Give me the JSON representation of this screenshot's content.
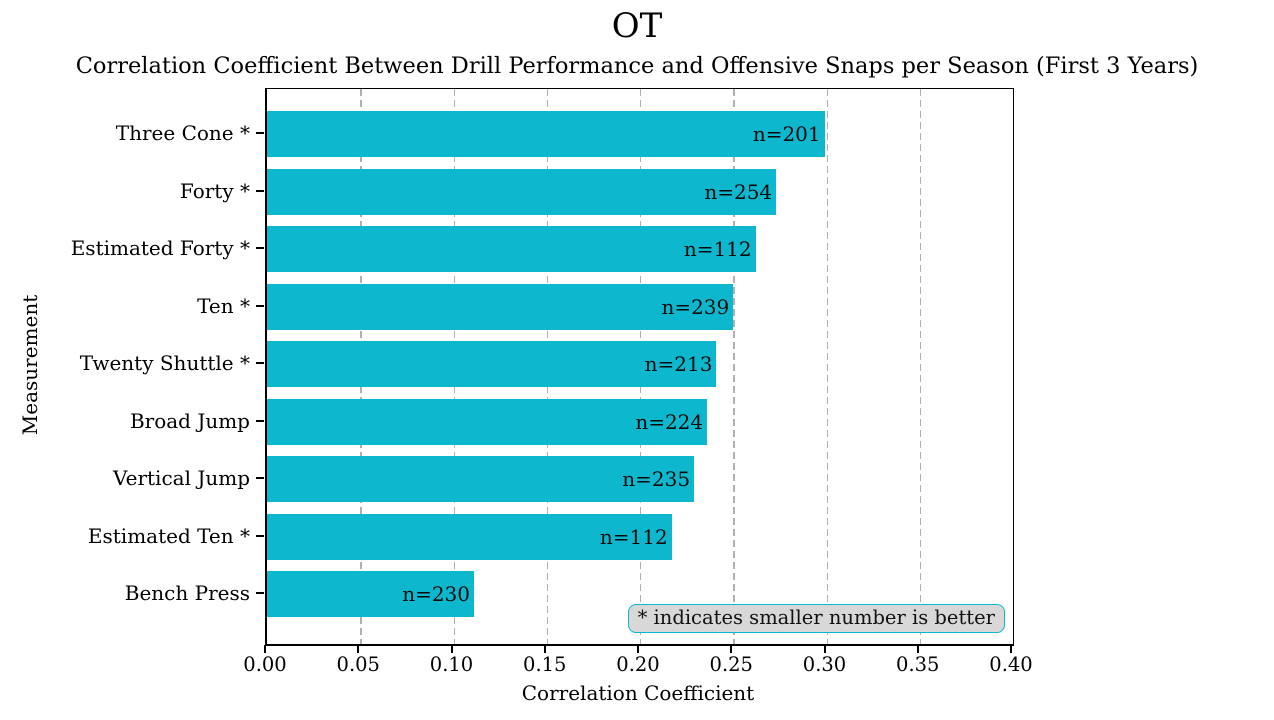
{
  "figure": {
    "title": "OT",
    "subtitle": "Correlation Coefficient Between Drill Performance and Offensive Snaps per Season (First 3 Years)"
  },
  "colors": {
    "bar": "#0db8cf",
    "grid": "#b0b0b0",
    "legend_bg": "#d8d8d8",
    "accent": "#0db8cf",
    "text": "#000000"
  },
  "legend": {
    "note": "* indicates smaller number is better"
  },
  "chart_data": {
    "type": "bar",
    "orientation": "horizontal",
    "title": "OT",
    "subtitle": "Correlation Coefficient Between Drill Performance and Offensive Snaps per Season (First 3 Years)",
    "xlabel": "Correlation Coefficient",
    "ylabel": "Measurement",
    "xlim": [
      0.0,
      0.4
    ],
    "xticks": [
      "0.00",
      "0.05",
      "0.10",
      "0.15",
      "0.20",
      "0.25",
      "0.30",
      "0.35",
      "0.40"
    ],
    "xtick_values": [
      0.0,
      0.05,
      0.1,
      0.15,
      0.2,
      0.25,
      0.3,
      0.35,
      0.4
    ],
    "grid": "vertical-dashed",
    "legend_position": "lower right",
    "annotation": "* indicates smaller number is better",
    "categories": [
      "Three Cone *",
      "Forty *",
      "Estimated Forty *",
      "Ten *",
      "Twenty Shuttle *",
      "Broad Jump",
      "Vertical Jump",
      "Estimated Ten *",
      "Bench Press"
    ],
    "values": [
      0.299,
      0.273,
      0.262,
      0.25,
      0.241,
      0.236,
      0.229,
      0.217,
      0.111
    ],
    "bar_labels": [
      "n=201",
      "n=254",
      "n=112",
      "n=239",
      "n=213",
      "n=224",
      "n=235",
      "n=112",
      "n=230"
    ]
  }
}
